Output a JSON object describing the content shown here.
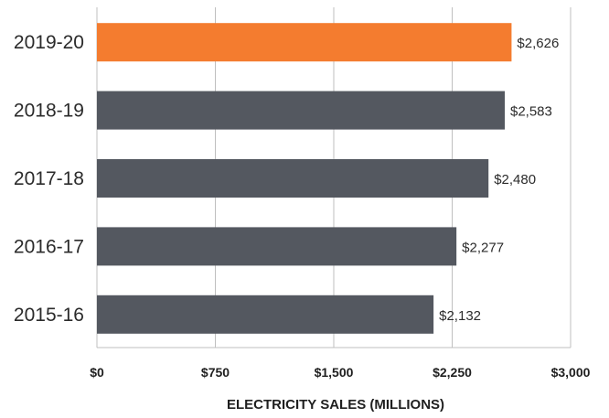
{
  "chart_data": {
    "type": "bar",
    "orientation": "horizontal",
    "categories": [
      "2019-20",
      "2018-19",
      "2017-18",
      "2016-17",
      "2015-16"
    ],
    "values": [
      2626,
      2583,
      2480,
      2277,
      2132
    ],
    "value_labels": [
      "$2,626",
      "$2,583",
      "$2,480",
      "$2,277",
      "$2,132"
    ],
    "xlabel": "ELECTRICITY SALES (MILLIONS)",
    "ylabel": "",
    "xlim": [
      0,
      3000
    ],
    "ticks": [
      0,
      750,
      1500,
      2250,
      3000
    ],
    "tick_labels": [
      "$0",
      "$750",
      "$1,500",
      "$2,250",
      "$3,000"
    ],
    "grid": "vertical",
    "colors": {
      "highlight": "#f47c2f",
      "default": "#545860",
      "grid": "#bfbfbf"
    },
    "highlight_index": 0
  }
}
